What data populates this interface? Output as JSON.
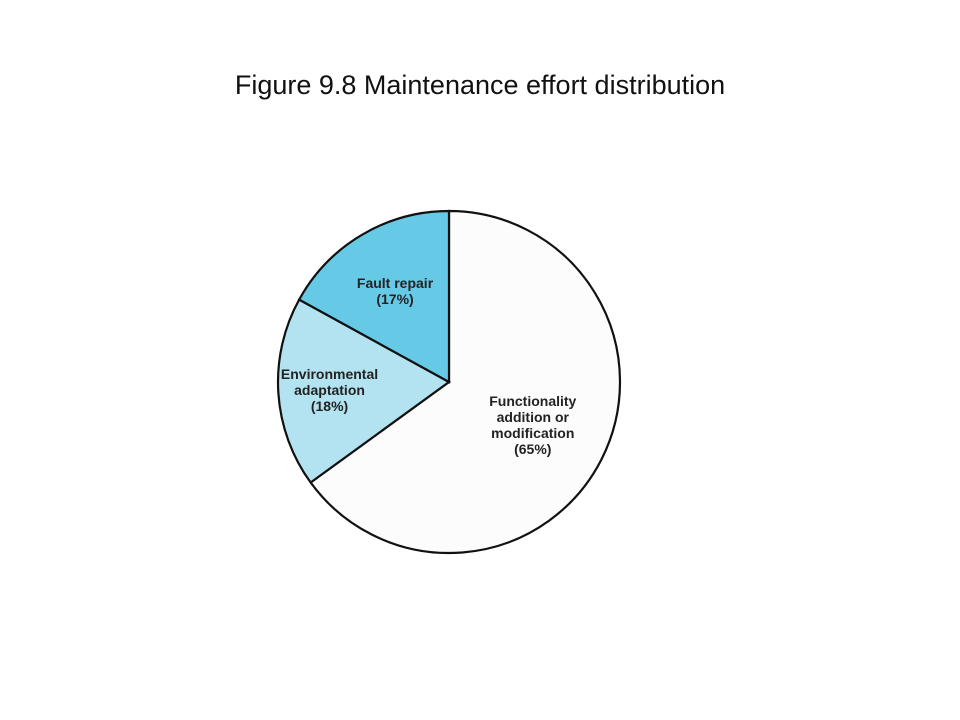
{
  "chart_data": {
    "type": "pie",
    "title": "Figure 9.8  Maintenance effort distribution",
    "categories": [
      "Functionality addition or modification",
      "Environmental adaptation",
      "Fault repair"
    ],
    "values": [
      65,
      18,
      17
    ],
    "value_labels": [
      "(65%)",
      "(18%)",
      "(17%)"
    ],
    "colors": [
      "#fcfcfc",
      "#b3e3f0",
      "#66c9e5"
    ]
  }
}
